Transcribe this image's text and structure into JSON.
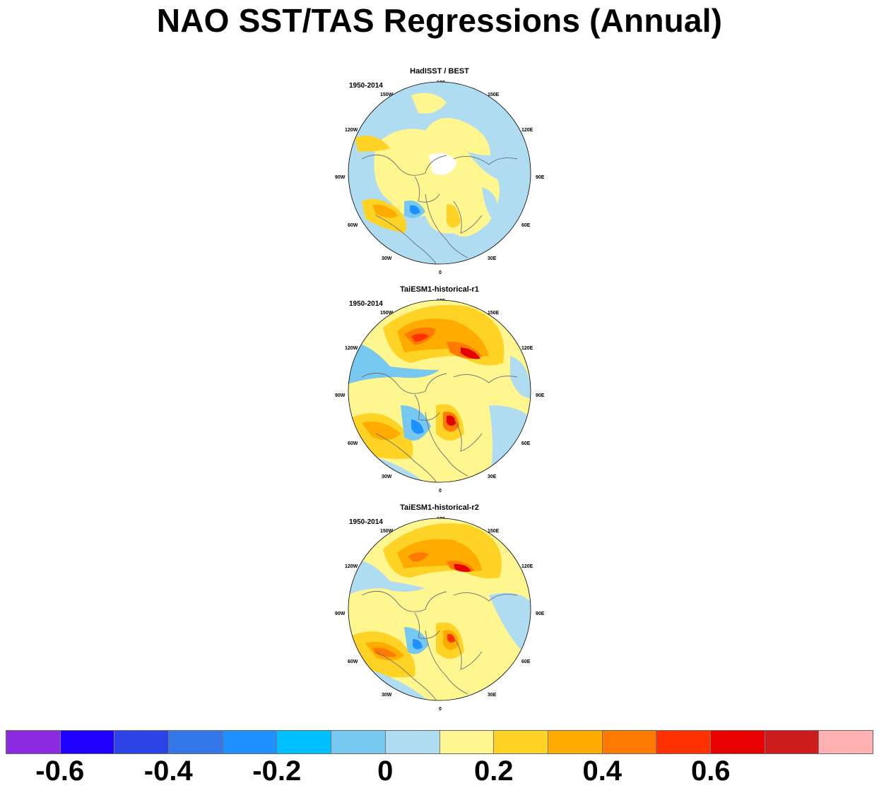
{
  "title": "NAO SST/TAS Regressions (Annual)",
  "panels": [
    {
      "title": "HadISST / BEST",
      "period": "1950-2014"
    },
    {
      "title": "TaiESM1-historical-r1",
      "period": "1950-2014"
    },
    {
      "title": "TaiESM1-historical-r2",
      "period": "1950-2014"
    }
  ],
  "lon_labels": [
    "180",
    "150E",
    "120E",
    "90E",
    "60E",
    "30E",
    "0",
    "30W",
    "60W",
    "90W",
    "120W",
    "150W"
  ],
  "colorbar": {
    "colors": [
      "#8a2be2",
      "#1e00ff",
      "#2c44e6",
      "#3477ea",
      "#1e90ff",
      "#00bfff",
      "#76c8f0",
      "#b0dcf2",
      "#fff68f",
      "#ffd325",
      "#ffab00",
      "#ff7a00",
      "#ff3200",
      "#e60000",
      "#cc1c1c",
      "#ffb0b0"
    ],
    "tick_labels": [
      "-0.6",
      "-0.4",
      "-0.2",
      "0",
      "0.2",
      "0.4",
      "0.6"
    ]
  }
}
